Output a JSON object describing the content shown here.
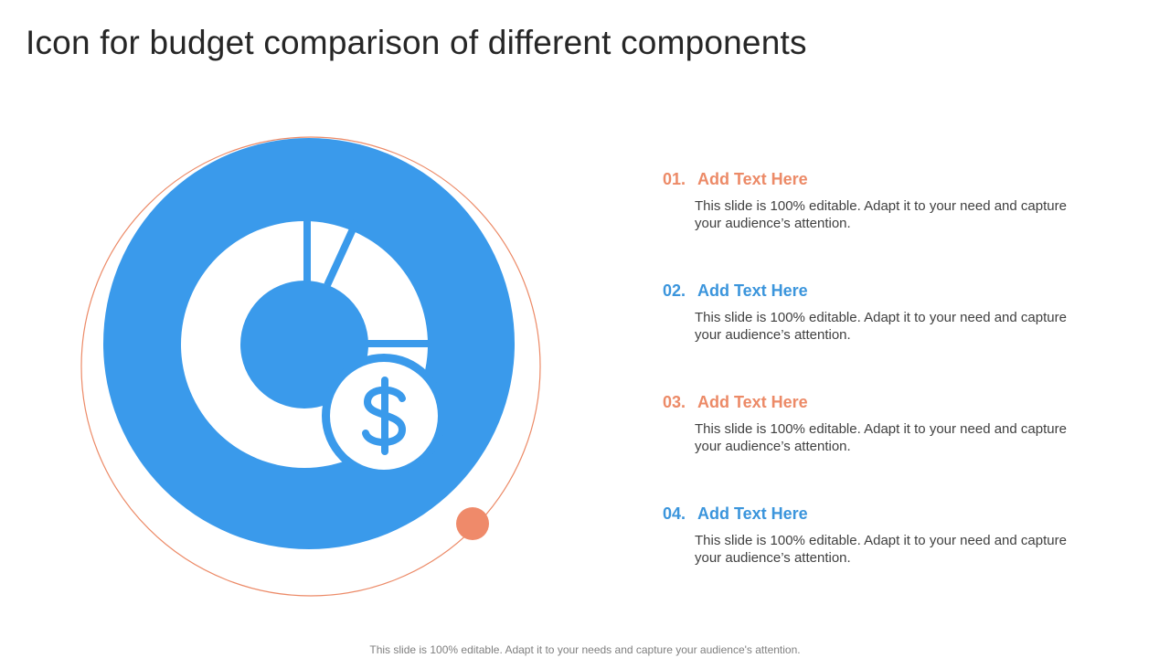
{
  "title": "Icon for budget comparison of different components",
  "items": [
    {
      "number": "01.",
      "heading": "Add Text Here",
      "body": "This slide is 100% editable. Adapt it to your need and capture your audience’s attention."
    },
    {
      "number": "02.",
      "heading": "Add Text Here",
      "body": "This slide is 100% editable. Adapt it to your need and capture your audience’s attention."
    },
    {
      "number": "03.",
      "heading": "Add Text Here",
      "body": "This slide is 100% editable. Adapt it to your need and capture your audience’s attention."
    },
    {
      "number": "04.",
      "heading": "Add Text Here",
      "body": "This slide is 100% editable. Adapt it to your need and capture your audience’s attention."
    }
  ],
  "footer": "This slide is 100% editable. Adapt it to your needs and capture your audience's attention."
}
